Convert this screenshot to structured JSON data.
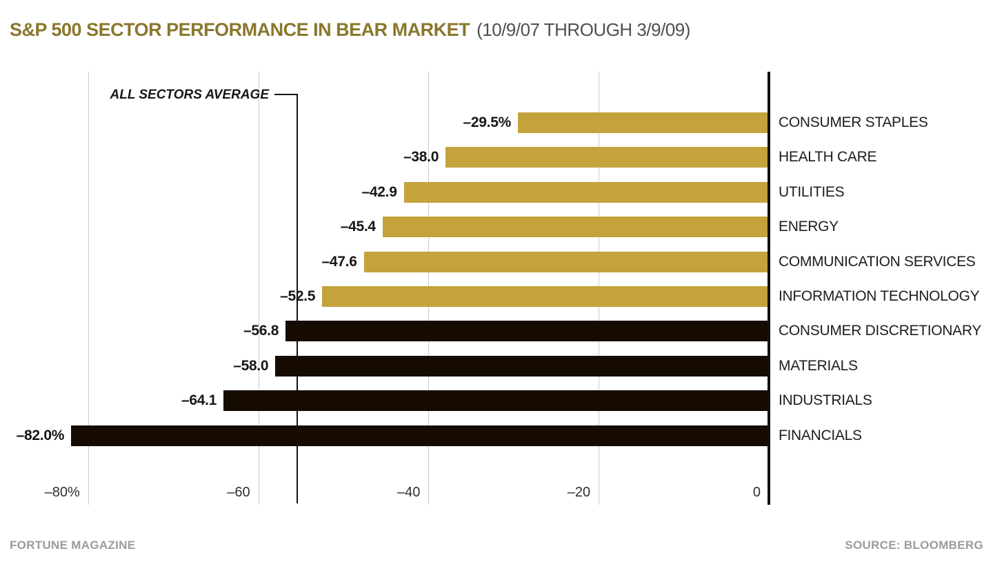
{
  "chart_data": {
    "type": "bar",
    "orientation": "horizontal",
    "title": "S&P 500 SECTOR PERFORMANCE IN BEAR MARKET",
    "subtitle": "(10/9/07 THROUGH 3/9/09)",
    "unit": "%",
    "xlim": [
      -82,
      0
    ],
    "grid": true,
    "x_ticks": [
      {
        "value": -80,
        "label": "–80%"
      },
      {
        "value": -60,
        "label": "–60"
      },
      {
        "value": -40,
        "label": "–40"
      },
      {
        "value": -20,
        "label": "–20"
      },
      {
        "value": 0,
        "label": "0"
      }
    ],
    "average": {
      "label": "ALL SECTORS AVERAGE",
      "value": -55.5
    },
    "colors": {
      "above_average": "#c4a23c",
      "below_average": "#150b01",
      "title": "#8a772b",
      "subtitle": "#4f4f4f",
      "grid": "#cccccc",
      "axis": "#111111",
      "muted_text": "#9b9b9b"
    },
    "series": [
      {
        "label": "CONSUMER STAPLES",
        "value": -29.5,
        "value_label": "–29.5%",
        "group": "above_average"
      },
      {
        "label": "HEALTH CARE",
        "value": -38.0,
        "value_label": "–38.0",
        "group": "above_average"
      },
      {
        "label": "UTILITIES",
        "value": -42.9,
        "value_label": "–42.9",
        "group": "above_average"
      },
      {
        "label": "ENERGY",
        "value": -45.4,
        "value_label": "–45.4",
        "group": "above_average"
      },
      {
        "label": "COMMUNICATION SERVICES",
        "value": -47.6,
        "value_label": "–47.6",
        "group": "above_average"
      },
      {
        "label": "INFORMATION TECHNOLOGY",
        "value": -52.5,
        "value_label": "–52.5",
        "group": "above_average"
      },
      {
        "label": "CONSUMER DISCRETIONARY",
        "value": -56.8,
        "value_label": "–56.8",
        "group": "below_average"
      },
      {
        "label": "MATERIALS",
        "value": -58.0,
        "value_label": "–58.0",
        "group": "below_average"
      },
      {
        "label": "INDUSTRIALS",
        "value": -64.1,
        "value_label": "–64.1",
        "group": "below_average"
      },
      {
        "label": "FINANCIALS",
        "value": -82.0,
        "value_label": "–82.0%",
        "group": "below_average"
      }
    ]
  },
  "footer": {
    "left": "FORTUNE MAGAZINE",
    "right": "SOURCE: BLOOMBERG"
  }
}
